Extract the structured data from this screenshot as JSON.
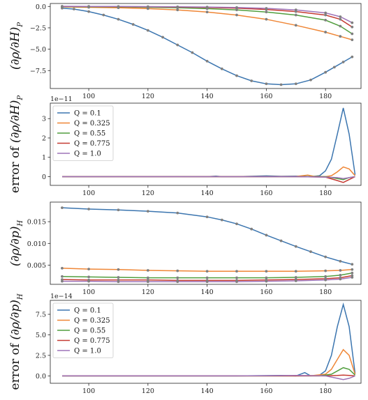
{
  "colors": {
    "Q = 0.1": "#3b75af",
    "Q = 0.325": "#ef8636",
    "Q = 0.55": "#519e3e",
    "Q = 0.775": "#c53a32",
    "Q = 1.0": "#9e73b8",
    "marker": "#7f7f7f"
  },
  "chart_data": [
    {
      "type": "line",
      "id": "p1",
      "ylabel": "(∂ρ/∂H)_P",
      "ylabel_parts": {
        "main": "(∂ρ/∂H)",
        "sub": "P"
      },
      "x_ticks": [
        "100",
        "120",
        "140",
        "160",
        "180"
      ],
      "y_ticks": [
        "0.0",
        "−2.5",
        "−5.0",
        "−7.5"
      ],
      "xlim": [
        87,
        192
      ],
      "ylim": [
        -9.6,
        0.35
      ],
      "markers": true,
      "series": [
        {
          "name": "Q = 0.1",
          "x": [
            91,
            95,
            100,
            105,
            110,
            115,
            120,
            125,
            130,
            135,
            140,
            145,
            150,
            155,
            160,
            165,
            170,
            175,
            180,
            183,
            186,
            189
          ],
          "values": [
            -0.2,
            -0.3,
            -0.6,
            -1.0,
            -1.5,
            -2.1,
            -2.8,
            -3.6,
            -4.5,
            -5.4,
            -6.4,
            -7.3,
            -8.1,
            -8.7,
            -9.05,
            -9.15,
            -9.05,
            -8.6,
            -7.7,
            -7.1,
            -6.5,
            -5.9
          ]
        },
        {
          "name": "Q = 0.325",
          "x": [
            91,
            100,
            110,
            120,
            130,
            140,
            150,
            160,
            170,
            180,
            185,
            189
          ],
          "values": [
            -0.05,
            -0.1,
            -0.15,
            -0.25,
            -0.4,
            -0.65,
            -1.0,
            -1.5,
            -2.2,
            -3.0,
            -3.5,
            -3.9
          ]
        },
        {
          "name": "Q = 0.55",
          "x": [
            91,
            100,
            110,
            120,
            130,
            140,
            150,
            160,
            170,
            180,
            185,
            189
          ],
          "values": [
            -0.02,
            -0.03,
            -0.05,
            -0.1,
            -0.15,
            -0.25,
            -0.4,
            -0.65,
            -1.0,
            -1.6,
            -2.3,
            -3.2
          ]
        },
        {
          "name": "Q = 0.775",
          "x": [
            91,
            100,
            110,
            120,
            130,
            140,
            150,
            160,
            170,
            180,
            185,
            189
          ],
          "values": [
            0.0,
            -0.01,
            -0.02,
            -0.04,
            -0.07,
            -0.12,
            -0.2,
            -0.35,
            -0.6,
            -1.0,
            -1.5,
            -2.4
          ]
        },
        {
          "name": "Q = 1.0",
          "x": [
            91,
            100,
            110,
            120,
            130,
            140,
            150,
            160,
            170,
            180,
            185,
            189
          ],
          "values": [
            0.02,
            0.01,
            0.0,
            -0.02,
            -0.04,
            -0.07,
            -0.12,
            -0.22,
            -0.4,
            -0.75,
            -1.2,
            -1.9
          ]
        }
      ]
    },
    {
      "type": "line",
      "id": "p2",
      "multiplier": "1e−11",
      "ylabel": "error of (∂ρ/∂H)_P",
      "ylabel_parts": {
        "prefix": "error of ",
        "main": "(∂ρ/∂H)",
        "sub": "P"
      },
      "x_ticks": [
        "100",
        "120",
        "140",
        "160",
        "180"
      ],
      "y_ticks": [
        "0",
        "1",
        "2",
        "3"
      ],
      "xlim": [
        87,
        192
      ],
      "ylim": [
        -0.45,
        3.8
      ],
      "legend": "upper-left",
      "markers": false,
      "series": [
        {
          "name": "Q = 0.1",
          "x": [
            91,
            100,
            110,
            120,
            130,
            140,
            143,
            145,
            150,
            160,
            165,
            170,
            175,
            178,
            180,
            182,
            184,
            186,
            188,
            190
          ],
          "values": [
            0.0,
            0.0,
            0.01,
            0.0,
            0.01,
            0.0,
            0.03,
            0.0,
            0.0,
            0.04,
            0.02,
            0.03,
            0.0,
            0.05,
            0.3,
            0.9,
            2.2,
            3.55,
            2.2,
            0.1
          ]
        },
        {
          "name": "Q = 0.325",
          "x": [
            91,
            120,
            150,
            170,
            174,
            176,
            180,
            182,
            184,
            186,
            188,
            190
          ],
          "values": [
            0.0,
            0.0,
            0.0,
            0.01,
            0.08,
            0.02,
            0.0,
            0.05,
            0.25,
            0.5,
            0.4,
            0.05
          ]
        },
        {
          "name": "Q = 0.55",
          "x": [
            91,
            120,
            150,
            170,
            180,
            184,
            186,
            188,
            190
          ],
          "values": [
            0.0,
            0.0,
            0.0,
            0.0,
            0.0,
            -0.1,
            -0.15,
            -0.05,
            0.0
          ]
        },
        {
          "name": "Q = 0.775",
          "x": [
            91,
            120,
            150,
            170,
            180,
            184,
            186,
            188,
            190
          ],
          "values": [
            0.0,
            0.0,
            0.0,
            0.0,
            -0.02,
            -0.2,
            -0.3,
            -0.15,
            0.0
          ]
        },
        {
          "name": "Q = 1.0",
          "x": [
            91,
            120,
            150,
            170,
            180,
            184,
            186,
            188,
            190
          ],
          "values": [
            0.0,
            0.0,
            0.0,
            0.0,
            -0.02,
            -0.05,
            -0.1,
            -0.05,
            0.0
          ]
        }
      ]
    },
    {
      "type": "line",
      "id": "p3",
      "ylabel": "(∂ρ/∂p)_H",
      "ylabel_parts": {
        "main": "(∂ρ/∂p)",
        "sub": "H"
      },
      "x_ticks": [
        "100",
        "120",
        "140",
        "160",
        "180"
      ],
      "y_ticks": [
        "0.005",
        "0.010",
        "0.015"
      ],
      "xlim": [
        87,
        192
      ],
      "ylim": [
        0.0006,
        0.0195
      ],
      "markers": true,
      "series": [
        {
          "name": "Q = 0.1",
          "x": [
            91,
            100,
            110,
            120,
            130,
            140,
            145,
            150,
            155,
            160,
            165,
            170,
            175,
            180,
            185,
            189
          ],
          "values": [
            0.0182,
            0.0179,
            0.0177,
            0.0174,
            0.017,
            0.0161,
            0.0154,
            0.0145,
            0.0133,
            0.0119,
            0.0106,
            0.0093,
            0.0081,
            0.0069,
            0.0059,
            0.0052
          ]
        },
        {
          "name": "Q = 0.325",
          "x": [
            91,
            100,
            110,
            120,
            130,
            140,
            150,
            160,
            170,
            180,
            185,
            189
          ],
          "values": [
            0.0043,
            0.0041,
            0.004,
            0.0038,
            0.0037,
            0.0036,
            0.0036,
            0.0036,
            0.0036,
            0.0037,
            0.0038,
            0.004
          ]
        },
        {
          "name": "Q = 0.55",
          "x": [
            91,
            100,
            110,
            120,
            130,
            140,
            150,
            160,
            170,
            180,
            185,
            189
          ],
          "values": [
            0.0024,
            0.0023,
            0.0022,
            0.0021,
            0.0021,
            0.0021,
            0.0021,
            0.0021,
            0.0022,
            0.0024,
            0.0027,
            0.0032
          ]
        },
        {
          "name": "Q = 0.775",
          "x": [
            91,
            100,
            110,
            120,
            130,
            140,
            150,
            160,
            170,
            180,
            185,
            189
          ],
          "values": [
            0.0017,
            0.0016,
            0.0016,
            0.0016,
            0.0015,
            0.0015,
            0.0015,
            0.0016,
            0.0017,
            0.0019,
            0.0021,
            0.0026
          ]
        },
        {
          "name": "Q = 1.0",
          "x": [
            91,
            100,
            110,
            120,
            130,
            140,
            150,
            160,
            170,
            180,
            185,
            189
          ],
          "values": [
            0.0013,
            0.0013,
            0.0012,
            0.0012,
            0.0012,
            0.0012,
            0.0012,
            0.0013,
            0.0014,
            0.0016,
            0.0018,
            0.0022
          ]
        }
      ]
    },
    {
      "type": "line",
      "id": "p4",
      "multiplier": "1e−14",
      "ylabel": "error of (∂ρ/∂p)_H",
      "ylabel_parts": {
        "prefix": "error of ",
        "main": "(∂ρ/∂p)",
        "sub": "H"
      },
      "x_ticks": [
        "100",
        "120",
        "140",
        "160",
        "180"
      ],
      "y_ticks": [
        "0.0",
        "2.5",
        "5.0",
        "7.5"
      ],
      "xlim": [
        87,
        192
      ],
      "ylim": [
        -0.9,
        9.2
      ],
      "legend": "upper-left",
      "markers": false,
      "series": [
        {
          "name": "Q = 0.1",
          "x": [
            91,
            120,
            150,
            165,
            170,
            173,
            175,
            178,
            180,
            182,
            184,
            186,
            188,
            190
          ],
          "values": [
            0.0,
            0.0,
            0.0,
            0.05,
            0.0,
            0.4,
            0.0,
            0.1,
            0.6,
            2.5,
            6.0,
            8.7,
            6.0,
            0.3
          ]
        },
        {
          "name": "Q = 0.325",
          "x": [
            91,
            120,
            150,
            170,
            176,
            180,
            182,
            184,
            186,
            188,
            190
          ],
          "values": [
            0.0,
            0.0,
            0.0,
            0.0,
            0.05,
            0.2,
            0.8,
            2.0,
            3.2,
            2.5,
            0.2
          ]
        },
        {
          "name": "Q = 0.55",
          "x": [
            91,
            120,
            150,
            170,
            178,
            182,
            184,
            186,
            188,
            190
          ],
          "values": [
            0.0,
            0.0,
            0.0,
            0.0,
            0.0,
            0.2,
            0.6,
            1.0,
            0.8,
            0.1
          ]
        },
        {
          "name": "Q = 0.775",
          "x": [
            91,
            120,
            150,
            170,
            180,
            184,
            186,
            188,
            190
          ],
          "values": [
            0.0,
            0.0,
            0.0,
            0.0,
            0.0,
            0.05,
            0.1,
            0.05,
            0.0
          ]
        },
        {
          "name": "Q = 1.0",
          "x": [
            91,
            120,
            150,
            170,
            180,
            184,
            186,
            188,
            190
          ],
          "values": [
            0.0,
            0.0,
            0.0,
            0.05,
            0.0,
            -0.3,
            -0.45,
            -0.3,
            0.0
          ]
        }
      ]
    }
  ]
}
